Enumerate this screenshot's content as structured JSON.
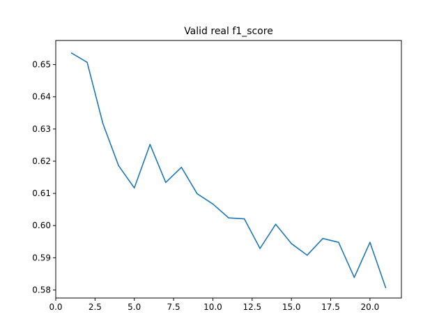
{
  "chart_data": {
    "type": "line",
    "title": "Valid real f1_score",
    "xlabel": "",
    "ylabel": "",
    "xlim": [
      0,
      22
    ],
    "ylim": [
      0.5775,
      0.6575
    ],
    "x_ticks": [
      0.0,
      2.5,
      5.0,
      7.5,
      10.0,
      12.5,
      15.0,
      17.5,
      20.0
    ],
    "x_tick_labels": [
      "0.0",
      "2.5",
      "5.0",
      "7.5",
      "10.0",
      "12.5",
      "15.0",
      "17.5",
      "20.0"
    ],
    "y_ticks": [
      0.58,
      0.59,
      0.6,
      0.61,
      0.62,
      0.63,
      0.64,
      0.65
    ],
    "y_tick_labels": [
      "0.58",
      "0.59",
      "0.60",
      "0.61",
      "0.62",
      "0.63",
      "0.64",
      "0.65"
    ],
    "grid": false,
    "series": [
      {
        "color": "#1f77b4",
        "x": [
          1,
          2,
          3,
          4,
          5,
          6,
          7,
          8,
          9,
          10,
          11,
          12,
          13,
          14,
          15,
          16,
          17,
          18,
          19,
          20,
          21
        ],
        "y": [
          0.6536,
          0.6507,
          0.6317,
          0.6186,
          0.6117,
          0.6252,
          0.6134,
          0.6181,
          0.6099,
          0.6067,
          0.6024,
          0.6021,
          0.5929,
          0.6004,
          0.5944,
          0.5908,
          0.596,
          0.5948,
          0.5839,
          0.5948,
          0.5807
        ]
      }
    ]
  }
}
